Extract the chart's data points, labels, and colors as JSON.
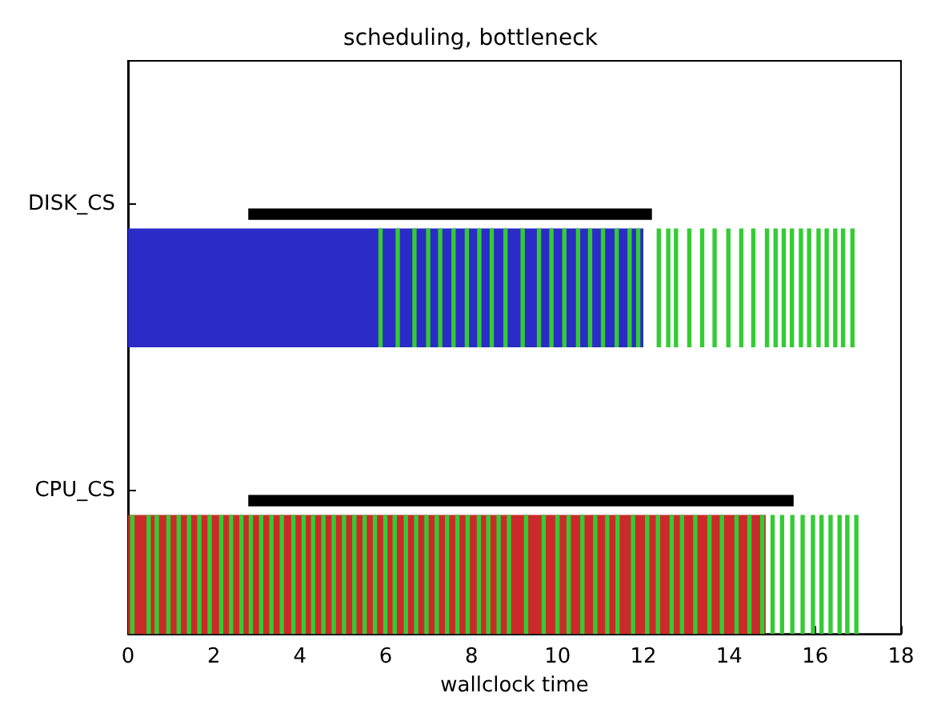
{
  "chart_data": {
    "type": "bar",
    "orientation": "horizontal",
    "title": "scheduling, bottleneck",
    "xlabel": "wallclock time",
    "categories": [
      "DISK_CS",
      "CPU_CS"
    ],
    "xlim": [
      0,
      18
    ],
    "xticks": [
      0,
      2,
      4,
      6,
      8,
      10,
      12,
      14,
      16,
      18
    ],
    "grid": false,
    "series": [
      {
        "color": "#000000",
        "base": [
          2.8,
          2.8
        ],
        "values": [
          9.4,
          12.7
        ]
      },
      {
        "color": "#2b2bc8",
        "colors": [
          "#2b2bc8",
          "#cc2a2a"
        ],
        "base": [
          0,
          0
        ],
        "values": [
          12.0,
          14.85
        ]
      },
      {
        "color": "#33cc33",
        "base": [
          5.83,
          0.05
        ],
        "values": [
          0.1,
          0.1
        ]
      },
      {
        "color": "#33cc33",
        "base": [
          6.23,
          0.43
        ],
        "values": [
          0.1,
          0.1
        ]
      },
      {
        "color": "#33cc33",
        "base": [
          6.62,
          0.62
        ],
        "values": [
          0.1,
          0.1
        ]
      },
      {
        "color": "#33cc33",
        "base": [
          6.94,
          0.89
        ],
        "values": [
          0.1,
          0.1
        ]
      },
      {
        "color": "#33cc33",
        "base": [
          7.22,
          1.13
        ],
        "values": [
          0.1,
          0.1
        ]
      },
      {
        "color": "#33cc33",
        "base": [
          7.53,
          1.37
        ],
        "values": [
          0.1,
          0.1
        ]
      },
      {
        "color": "#33cc33",
        "base": [
          7.84,
          1.61
        ],
        "values": [
          0.1,
          0.1
        ]
      },
      {
        "color": "#33cc33",
        "base": [
          8.13,
          1.85
        ],
        "values": [
          0.1,
          0.1
        ]
      },
      {
        "color": "#33cc33",
        "base": [
          8.42,
          2.12
        ],
        "values": [
          0.1,
          0.1
        ]
      },
      {
        "color": "#33cc33",
        "base": [
          8.74,
          2.35
        ],
        "values": [
          0.1,
          0.1
        ]
      },
      {
        "color": "#33cc33",
        "base": [
          9.14,
          2.59
        ],
        "values": [
          0.1,
          0.1
        ]
      },
      {
        "color": "#33cc33",
        "base": [
          9.52,
          2.81
        ],
        "values": [
          0.1,
          0.1
        ]
      },
      {
        "color": "#33cc33",
        "base": [
          9.81,
          3.05
        ],
        "values": [
          0.1,
          0.1
        ]
      },
      {
        "color": "#33cc33",
        "base": [
          10.11,
          3.29
        ],
        "values": [
          0.1,
          0.1
        ]
      },
      {
        "color": "#33cc33",
        "base": [
          10.43,
          3.53
        ],
        "values": [
          0.1,
          0.1
        ]
      },
      {
        "color": "#33cc33",
        "base": [
          10.71,
          3.8
        ],
        "values": [
          0.1,
          0.1
        ]
      },
      {
        "color": "#33cc33",
        "base": [
          11.01,
          4.04
        ],
        "values": [
          0.1,
          0.1
        ]
      },
      {
        "color": "#33cc33",
        "base": [
          11.33,
          4.26
        ],
        "values": [
          0.1,
          0.1
        ]
      },
      {
        "color": "#33cc33",
        "base": [
          11.63,
          4.5
        ],
        "values": [
          0.1,
          0.1
        ]
      },
      {
        "color": "#33cc33",
        "base": [
          11.83,
          4.74
        ],
        "values": [
          0.1,
          0.1
        ]
      },
      {
        "color": "#33cc33",
        "base": [
          12.31,
          4.98
        ],
        "values": [
          0.1,
          0.1
        ]
      },
      {
        "color": "#33cc33",
        "base": [
          12.53,
          5.22
        ],
        "values": [
          0.1,
          0.1
        ]
      },
      {
        "color": "#33cc33",
        "base": [
          12.71,
          5.46
        ],
        "values": [
          0.1,
          0.1
        ]
      },
      {
        "color": "#33cc33",
        "base": [
          13.02,
          5.7
        ],
        "values": [
          0.1,
          0.1
        ]
      },
      {
        "color": "#33cc33",
        "base": [
          13.32,
          5.94
        ],
        "values": [
          0.1,
          0.1
        ]
      },
      {
        "color": "#33cc33",
        "base": [
          13.61,
          6.16
        ],
        "values": [
          0.1,
          0.1
        ]
      },
      {
        "color": "#33cc33",
        "base": [
          13.93,
          6.42
        ],
        "values": [
          0.1,
          0.1
        ]
      },
      {
        "color": "#33cc33",
        "base": [
          14.23,
          6.66
        ],
        "values": [
          0.1,
          0.1
        ]
      },
      {
        "color": "#33cc33",
        "base": [
          14.51,
          6.9
        ],
        "values": [
          0.1,
          0.1
        ]
      },
      {
        "color": "#33cc33",
        "base": [
          14.83,
          7.14
        ],
        "values": [
          0.1,
          0.1
        ]
      },
      {
        "color": "#33cc33",
        "base": [
          15.03,
          7.38
        ],
        "values": [
          0.1,
          0.1
        ]
      },
      {
        "color": "#33cc33",
        "base": [
          15.22,
          7.62
        ],
        "values": [
          0.1,
          0.1
        ]
      },
      {
        "color": "#33cc33",
        "base": [
          15.41,
          7.86
        ],
        "values": [
          0.1,
          0.1
        ]
      },
      {
        "color": "#33cc33",
        "base": [
          15.62,
          8.12
        ],
        "values": [
          0.1,
          0.1
        ]
      },
      {
        "color": "#33cc33",
        "base": [
          15.81,
          8.34
        ],
        "values": [
          0.1,
          0.1
        ]
      },
      {
        "color": "#33cc33",
        "base": [
          16.03,
          8.58
        ],
        "values": [
          0.1,
          0.1
        ]
      },
      {
        "color": "#33cc33",
        "base": [
          16.22,
          8.82
        ],
        "values": [
          0.1,
          0.1
        ]
      },
      {
        "color": "#33cc33",
        "base": [
          16.42,
          9.22
        ],
        "values": [
          0.1,
          0.1
        ]
      },
      {
        "color": "#33cc33",
        "base": [
          16.6,
          9.63
        ],
        "values": [
          0.1,
          0.1
        ]
      },
      {
        "color": "#33cc33",
        "base": [
          16.82,
          9.95
        ],
        "values": [
          0.1,
          0.1
        ]
      },
      {
        "color": "#33cc33",
        "base": [
          null,
          10.21
        ],
        "values": [
          null,
          0.1
        ]
      },
      {
        "color": "#33cc33",
        "base": [
          null,
          10.53
        ],
        "values": [
          null,
          0.1
        ]
      },
      {
        "color": "#33cc33",
        "base": [
          null,
          10.83
        ],
        "values": [
          null,
          0.1
        ]
      },
      {
        "color": "#33cc33",
        "base": [
          null,
          11.11
        ],
        "values": [
          null,
          0.1
        ]
      },
      {
        "color": "#33cc33",
        "base": [
          null,
          11.35
        ],
        "values": [
          null,
          0.1
        ]
      },
      {
        "color": "#33cc33",
        "base": [
          null,
          11.71
        ],
        "values": [
          null,
          0.1
        ]
      },
      {
        "color": "#33cc33",
        "base": [
          null,
          12.04
        ],
        "values": [
          null,
          0.1
        ]
      },
      {
        "color": "#33cc33",
        "base": [
          null,
          12.29
        ],
        "values": [
          null,
          0.1
        ]
      },
      {
        "color": "#33cc33",
        "base": [
          null,
          12.61
        ],
        "values": [
          null,
          0.1
        ]
      },
      {
        "color": "#33cc33",
        "base": [
          null,
          12.85
        ],
        "values": [
          null,
          0.1
        ]
      },
      {
        "color": "#33cc33",
        "base": [
          null,
          13.16
        ],
        "values": [
          null,
          0.1
        ]
      },
      {
        "color": "#33cc33",
        "base": [
          null,
          13.49
        ],
        "values": [
          null,
          0.1
        ]
      },
      {
        "color": "#33cc33",
        "base": [
          null,
          13.78
        ],
        "values": [
          null,
          0.1
        ]
      },
      {
        "color": "#33cc33",
        "base": [
          null,
          14.12
        ],
        "values": [
          null,
          0.1
        ]
      },
      {
        "color": "#33cc33",
        "base": [
          null,
          14.42
        ],
        "values": [
          null,
          0.1
        ]
      },
      {
        "color": "#33cc33",
        "base": [
          null,
          14.72
        ],
        "values": [
          null,
          0.1
        ]
      },
      {
        "color": "#33cc33",
        "base": [
          null,
          14.96
        ],
        "values": [
          null,
          0.1
        ]
      },
      {
        "color": "#33cc33",
        "base": [
          null,
          15.18
        ],
        "values": [
          null,
          0.1
        ]
      },
      {
        "color": "#33cc33",
        "base": [
          null,
          15.42
        ],
        "values": [
          null,
          0.1
        ]
      },
      {
        "color": "#33cc33",
        "base": [
          null,
          15.66
        ],
        "values": [
          null,
          0.1
        ]
      },
      {
        "color": "#33cc33",
        "base": [
          null,
          15.9
        ],
        "values": [
          null,
          0.1
        ]
      },
      {
        "color": "#33cc33",
        "base": [
          null,
          16.1
        ],
        "values": [
          null,
          0.1
        ]
      },
      {
        "color": "#33cc33",
        "base": [
          null,
          16.31
        ],
        "values": [
          null,
          0.1
        ]
      },
      {
        "color": "#33cc33",
        "base": [
          null,
          16.52
        ],
        "values": [
          null,
          0.1
        ]
      },
      {
        "color": "#33cc33",
        "base": [
          null,
          16.7
        ],
        "values": [
          null,
          0.1
        ]
      },
      {
        "color": "#33cc33",
        "base": [
          null,
          16.91
        ],
        "values": [
          null,
          0.1
        ]
      }
    ]
  }
}
